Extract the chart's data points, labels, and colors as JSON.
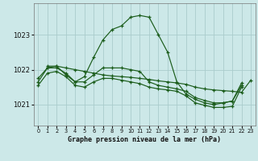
{
  "title": "Graphe pression niveau de la mer (hPa)",
  "bg_color": "#cce8e8",
  "grid_color": "#aacccc",
  "line_color": "#1a5c1a",
  "xlim": [
    -0.5,
    23.5
  ],
  "ylim": [
    1020.4,
    1023.9
  ],
  "yticks": [
    1021,
    1022,
    1023
  ],
  "xticks": [
    0,
    1,
    2,
    3,
    4,
    5,
    6,
    7,
    8,
    9,
    10,
    11,
    12,
    13,
    14,
    15,
    16,
    17,
    18,
    19,
    20,
    21,
    22,
    23
  ],
  "series": [
    {
      "x": [
        1,
        2,
        3,
        4,
        5,
        6,
        7,
        8,
        9,
        10,
        11,
        12,
        13,
        14,
        15,
        16,
        17,
        18,
        19,
        20,
        21,
        22
      ],
      "y": [
        1022.1,
        1022.1,
        1021.85,
        1021.65,
        1021.8,
        1022.35,
        1022.85,
        1023.15,
        1023.25,
        1023.5,
        1023.55,
        1023.5,
        1023.0,
        1022.5,
        1021.65,
        1021.3,
        1021.15,
        1021.05,
        1021.0,
        1021.05,
        1021.1,
        1021.55
      ]
    },
    {
      "x": [
        0,
        1,
        2,
        3,
        4,
        5,
        6,
        7,
        8,
        9,
        10,
        11,
        12,
        13,
        14,
        15,
        16,
        17,
        18,
        19,
        20,
        21,
        22,
        23
      ],
      "y": [
        1021.75,
        1022.05,
        1022.1,
        1022.05,
        1022.0,
        1021.95,
        1021.9,
        1021.85,
        1021.82,
        1021.8,
        1021.78,
        1021.75,
        1021.72,
        1021.68,
        1021.65,
        1021.62,
        1021.58,
        1021.5,
        1021.45,
        1021.42,
        1021.4,
        1021.38,
        1021.35,
        1021.7
      ]
    },
    {
      "x": [
        0,
        1,
        2,
        3,
        4,
        5,
        6,
        7,
        8,
        9,
        10,
        11,
        12,
        13,
        14,
        15,
        16,
        17,
        18,
        19,
        20,
        21,
        22,
        23
      ],
      "y": [
        1021.65,
        1022.05,
        1022.05,
        1021.9,
        1021.65,
        1021.65,
        1021.85,
        1022.05,
        1022.05,
        1022.05,
        1022.0,
        1021.95,
        1021.65,
        1021.55,
        1021.5,
        1021.45,
        1021.38,
        1021.2,
        1021.12,
        1021.05,
        1021.05,
        1021.1,
        1021.62,
        null
      ]
    },
    {
      "x": [
        0,
        1,
        2,
        3,
        4,
        5,
        6,
        7,
        8,
        9,
        10,
        11,
        12,
        13,
        14,
        15,
        16,
        17,
        18,
        19,
        20,
        21,
        22,
        23
      ],
      "y": [
        1021.55,
        1021.9,
        1021.95,
        1021.8,
        1021.55,
        1021.5,
        1021.65,
        1021.75,
        1021.75,
        1021.7,
        1021.65,
        1021.6,
        1021.5,
        1021.45,
        1021.42,
        1021.38,
        1021.25,
        1021.05,
        1020.98,
        1020.92,
        1020.92,
        1020.95,
        1021.5,
        null
      ]
    }
  ]
}
